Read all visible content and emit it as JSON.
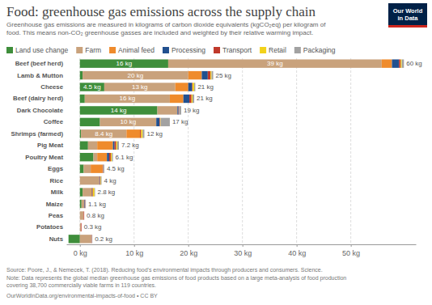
{
  "chart_data": {
    "type": "bar",
    "orientation": "horizontal",
    "stacked": true,
    "grid": true,
    "legend": "top",
    "data_labels": true,
    "title": "Food: greenhouse gas emissions across the supply chain",
    "subtitle": [
      "Greenhouse gas emissions are measured in kilograms of carbon dioxide equivalents (kgCO₂eq) per kilogram of",
      "food. This means non-CO₂ greenhouse gasses are included and weighted by their relative warming impact."
    ],
    "logo": [
      "Our World",
      "in Data"
    ],
    "source": "Source: Poore, J., & Nemecek, T. (2018). Reducing food's environmental impacts through producers and consumers. Science.",
    "note": [
      "Note: Data represents the global median greenhouse gas emissions of food products based on a large meta-analysis of food production",
      "covering 38,700 commercially viable farms in 119 countries."
    ],
    "url": "OurWorldInData.org/environmental-impacts-of-food • CC BY",
    "categories": [
      "Beef (beef herd)",
      "Lamb & Mutton",
      "Cheese",
      "Beef (dairy herd)",
      "Dark Chocolate",
      "Coffee",
      "Shrimps (farmed)",
      "Pig Meat",
      "Poultry Meat",
      "Eggs",
      "Rice",
      "Milk",
      "Maize",
      "Peas",
      "Potatoes",
      "Nuts"
    ],
    "series": [
      {
        "name": "Land use change",
        "color": "#3f8e3b",
        "values": [
          16.3,
          0.5,
          4.5,
          0.9,
          14.3,
          3.7,
          0.2,
          1.5,
          2.5,
          0.7,
          0,
          0.5,
          0.3,
          0,
          0,
          -2.1
        ],
        "value_labels": [
          "16 kg",
          null,
          "4.5 kg",
          null,
          "14 kg",
          null,
          null,
          null,
          null,
          null,
          null,
          null,
          null,
          null,
          null,
          null
        ]
      },
      {
        "name": "Farm",
        "color": "#c9a27c",
        "values": [
          39.4,
          19.5,
          13.1,
          15.7,
          3.7,
          10.4,
          8.4,
          1.7,
          0.7,
          1.3,
          3.6,
          1.5,
          0.5,
          0.7,
          0.2,
          2.1
        ],
        "value_labels": [
          "39 kg",
          "20 kg",
          "13 kg",
          "16 kg",
          null,
          "10 kg",
          "8.4 kg",
          null,
          null,
          null,
          null,
          null,
          null,
          null,
          null,
          null
        ]
      },
      {
        "name": "Animal feed",
        "color": "#ef8b2c",
        "values": [
          1.9,
          2.5,
          2.4,
          2.5,
          0,
          0,
          2.5,
          2.9,
          1.8,
          2.2,
          0,
          0.2,
          0,
          0,
          0,
          0
        ]
      },
      {
        "name": "Processing",
        "color": "#21508f",
        "values": [
          1.3,
          1.1,
          0.7,
          1.1,
          0.2,
          0.6,
          0,
          0.3,
          0.4,
          0,
          0.1,
          0.1,
          0.1,
          0,
          0,
          0
        ]
      },
      {
        "name": "Transport",
        "color": "#c0392b",
        "values": [
          0.3,
          0.5,
          0.1,
          0.4,
          0.1,
          0.1,
          0.2,
          0.3,
          0.3,
          0.1,
          0.1,
          0.1,
          0.1,
          0.1,
          0.1,
          0.1
        ]
      },
      {
        "name": "Retail",
        "color": "#f2d21a",
        "values": [
          0.2,
          0.2,
          0.3,
          0.2,
          0,
          0.1,
          0.3,
          0.2,
          0.2,
          0,
          0.1,
          0.3,
          0,
          0,
          0,
          0
        ]
      },
      {
        "name": "Packaging",
        "color": "#a2a2a2",
        "values": [
          0.4,
          0.3,
          0.2,
          0.3,
          0.4,
          1.7,
          0.3,
          0.3,
          0.2,
          0.2,
          0.1,
          0.1,
          0.1,
          0,
          0,
          0.1
        ]
      }
    ],
    "totals": [
      59.8,
      24.6,
      21.3,
      21.1,
      18.7,
      16.6,
      11.9,
      7.2,
      6.1,
      4.5,
      4.0,
      2.8,
      1.1,
      0.8,
      0.3,
      0.2
    ],
    "total_labels": [
      "60 kg",
      "25 kg",
      "21 kg",
      "21 kg",
      "19 kg",
      "17 kg",
      "12 kg",
      "7.2 kg",
      "6.1 kg",
      "4.5 kg",
      "4 kg",
      "2.8 kg",
      "1.1 kg",
      "0.8 kg",
      "0.3 kg",
      "0.2 kg"
    ],
    "xlim": [
      -2.5,
      62
    ],
    "xticks": [
      {
        "value": 0,
        "label": "0 kg"
      },
      {
        "value": 10,
        "label": "10 kg"
      },
      {
        "value": 20,
        "label": "20 kg"
      },
      {
        "value": 30,
        "label": "30 kg"
      },
      {
        "value": 40,
        "label": "40 kg"
      },
      {
        "value": 50,
        "label": "50 kg"
      }
    ]
  }
}
